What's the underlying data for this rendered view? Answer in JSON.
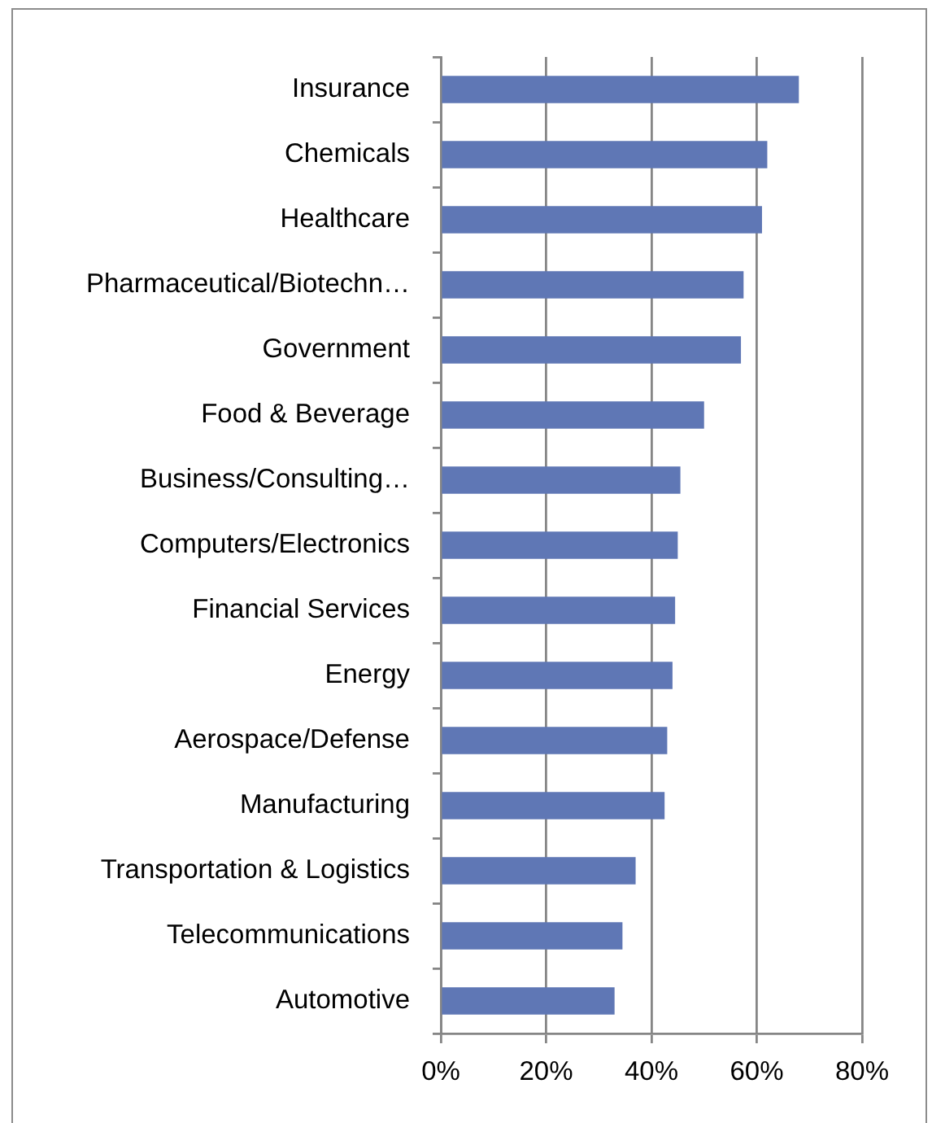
{
  "chart_data": {
    "type": "bar",
    "orientation": "horizontal",
    "categories": [
      "Insurance",
      "Chemicals",
      "Healthcare",
      "Pharmaceutical/Biotechn…",
      "Government",
      "Food & Beverage",
      "Business/Consulting…",
      "Computers/Electronics",
      "Financial Services",
      "Energy",
      "Aerospace/Defense",
      "Manufacturing",
      "Transportation & Logistics",
      "Telecommunications",
      "Automotive"
    ],
    "values": [
      68,
      62,
      61,
      57.5,
      57,
      50,
      45.5,
      45,
      44.5,
      44,
      43,
      42.5,
      37,
      34.5,
      33
    ],
    "color": "#5f77b5",
    "xlim": [
      0,
      80
    ],
    "xticks": [
      {
        "value": 0,
        "label": "0%"
      },
      {
        "value": 20,
        "label": "20%"
      },
      {
        "value": 40,
        "label": "40%"
      },
      {
        "value": 60,
        "label": "60%"
      },
      {
        "value": 80,
        "label": "80%"
      }
    ],
    "grid": "x"
  }
}
